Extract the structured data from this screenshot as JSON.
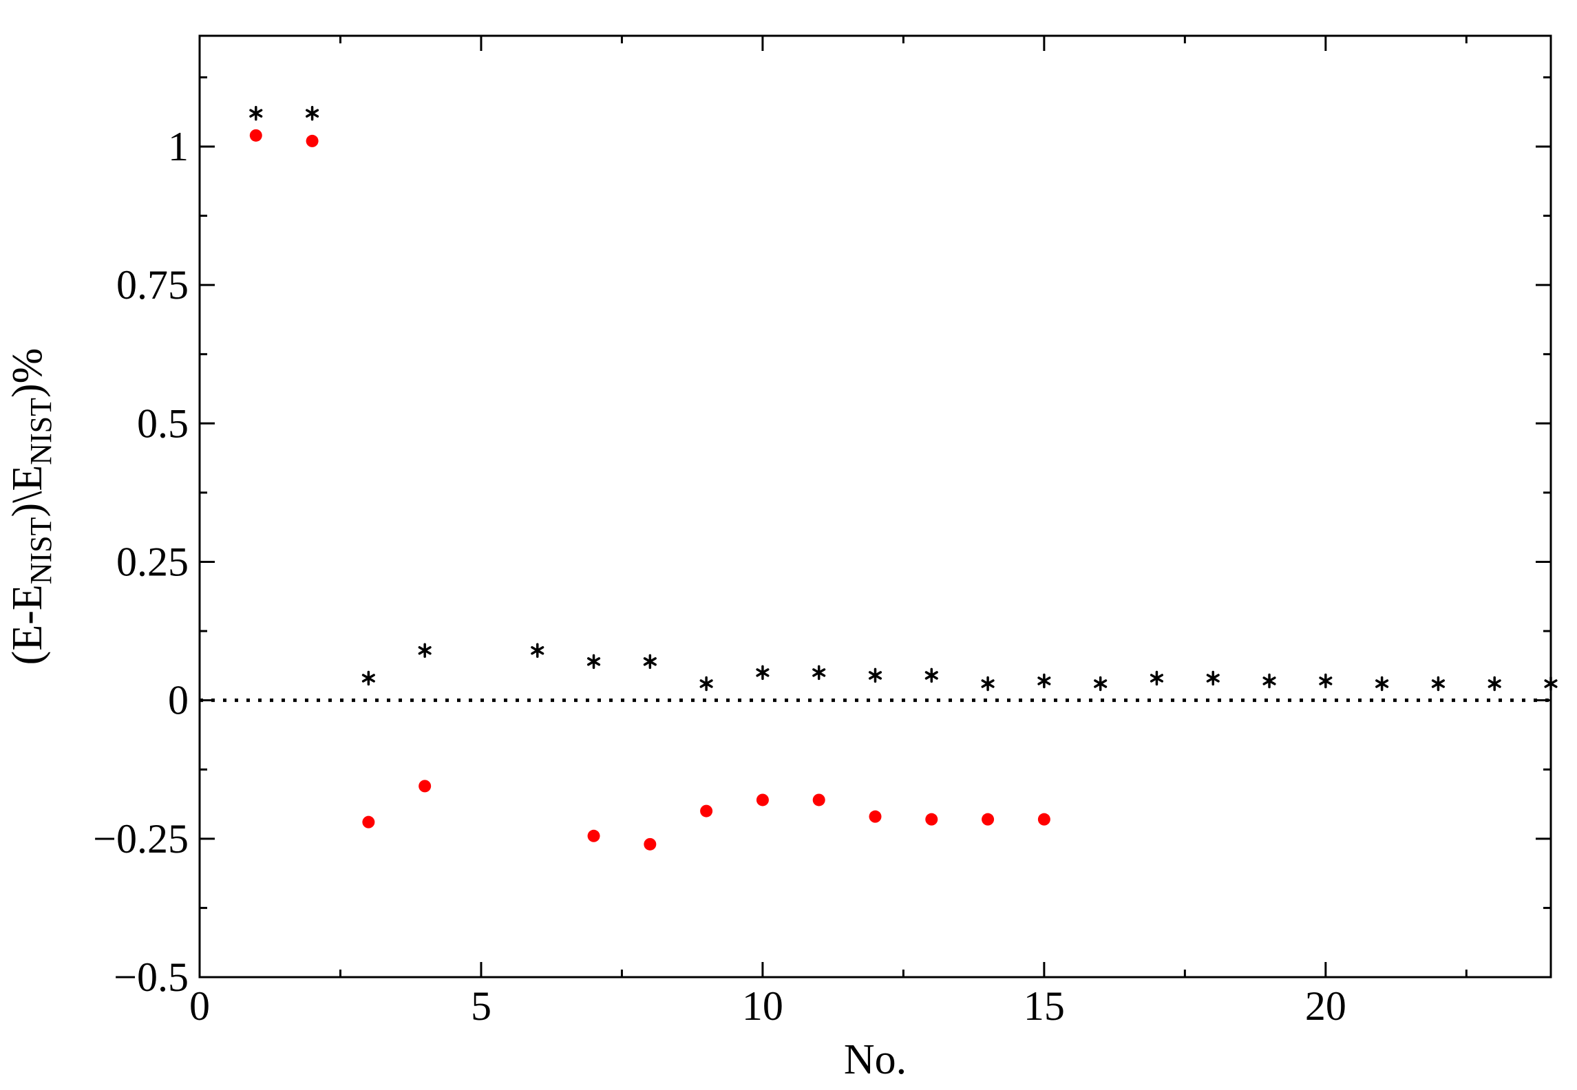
{
  "chart_data": {
    "type": "scatter",
    "title": "",
    "xlabel": "No.",
    "ylabel": "(E-E_NIST)\\E_NIST)%",
    "ylabel_parts": {
      "p1": "(E-E",
      "sub1": "NIST",
      "p2": ")\\E",
      "sub2": "NIST",
      "p3": ")%"
    },
    "xlim": [
      0,
      24
    ],
    "ylim": [
      -0.5,
      1.2
    ],
    "x_ticks": [
      0,
      5,
      10,
      15,
      20
    ],
    "x_tick_labels": [
      "0",
      "5",
      "10",
      "15",
      "20"
    ],
    "y_ticks": [
      -0.5,
      -0.25,
      0,
      0.25,
      0.5,
      0.75,
      1
    ],
    "y_tick_labels": [
      "−0.5",
      "−0.25",
      "0",
      "0.25",
      "0.5",
      "0.75",
      "1"
    ],
    "reference_line_y": 0,
    "grid": false,
    "series": [
      {
        "marker": "asterisk",
        "color": "#000000",
        "x": [
          1,
          2,
          3,
          4,
          6,
          7,
          8,
          9,
          10,
          11,
          12,
          13,
          14,
          15,
          16,
          17,
          18,
          19,
          20,
          21,
          22,
          23,
          24
        ],
        "y": [
          1.06,
          1.06,
          0.04,
          0.09,
          0.09,
          0.07,
          0.07,
          0.03,
          0.05,
          0.05,
          0.045,
          0.045,
          0.03,
          0.035,
          0.03,
          0.04,
          0.04,
          0.035,
          0.035,
          0.03,
          0.03,
          0.03,
          0.03
        ]
      },
      {
        "marker": "dot",
        "color": "#ff0000",
        "x": [
          1,
          2,
          3,
          4,
          7,
          8,
          9,
          10,
          11,
          12,
          13,
          14,
          15
        ],
        "y": [
          1.02,
          1.01,
          -0.22,
          -0.155,
          -0.245,
          -0.26,
          -0.2,
          -0.18,
          -0.18,
          -0.21,
          -0.215,
          -0.215,
          -0.215
        ]
      }
    ]
  }
}
